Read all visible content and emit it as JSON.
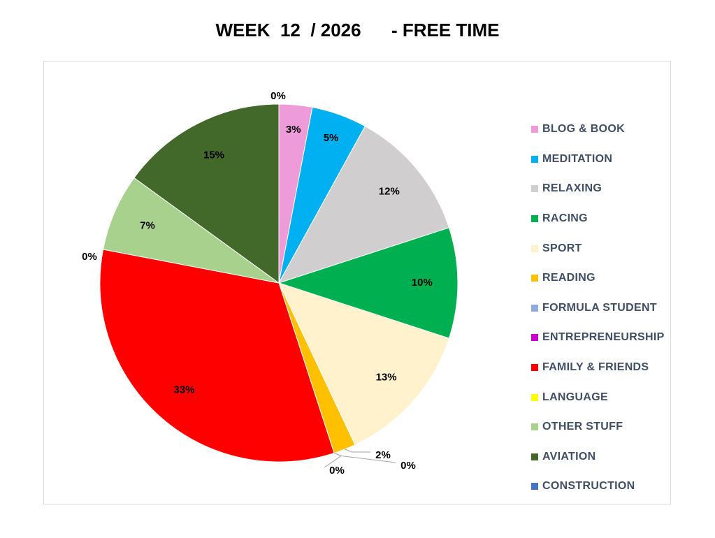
{
  "chart_data": {
    "type": "pie",
    "title": "WEEK  12  / 2026      - FREE TIME",
    "legend_position": "right",
    "slices": [
      {
        "label": "BLOG & BOOK",
        "value": 3,
        "display": "3%",
        "color": "#ee9bd9"
      },
      {
        "label": "MEDITATION",
        "value": 5,
        "display": "5%",
        "color": "#00b0f0"
      },
      {
        "label": "RELAXING",
        "value": 12,
        "display": "12%",
        "color": "#d0cece"
      },
      {
        "label": "RACING",
        "value": 10,
        "display": "10%",
        "color": "#00b050"
      },
      {
        "label": "SPORT",
        "value": 13,
        "display": "13%",
        "color": "#fff2cc"
      },
      {
        "label": "READING",
        "value": 2,
        "display": "2%",
        "color": "#ffc000"
      },
      {
        "label": "FORMULA STUDENT",
        "value": 0,
        "display": "0%",
        "color": "#8faadc"
      },
      {
        "label": "ENTREPRENEURSHIP",
        "value": 0,
        "display": "0%",
        "color": "#cc00cc"
      },
      {
        "label": "FAMILY & FRIENDS",
        "value": 33,
        "display": "33%",
        "color": "#ff0000"
      },
      {
        "label": "LANGUAGE",
        "value": 0,
        "display": "0%",
        "color": "#ffff00"
      },
      {
        "label": "OTHER STUFF",
        "value": 7,
        "display": "7%",
        "color": "#a9d18e"
      },
      {
        "label": "AVIATION",
        "value": 15,
        "display": "15%",
        "color": "#42682a"
      },
      {
        "label": "CONSTRUCTION",
        "value": 0,
        "display": "0%",
        "color": "#4472c4"
      }
    ]
  }
}
